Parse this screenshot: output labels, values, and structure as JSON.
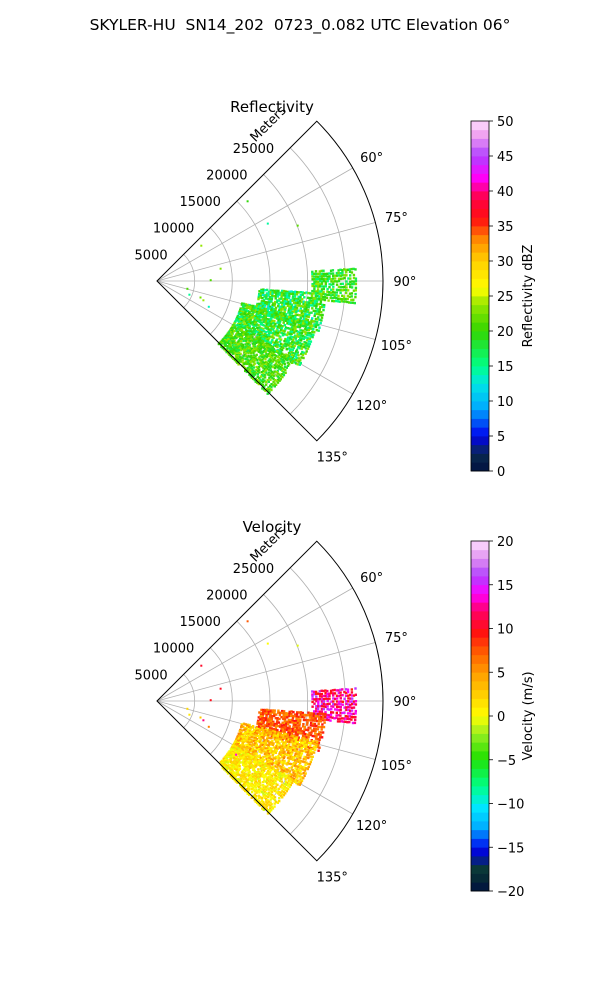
{
  "title": "SKYLER-HU  SN14_202  0723_0.082 UTC Elevation 06°",
  "chart_data": [
    {
      "type": "heatmap",
      "projection": "polar-sector",
      "title": "Reflectivity",
      "range_label": "Meters",
      "range_ticks": [
        5000,
        10000,
        15000,
        20000,
        25000
      ],
      "range_max": 30000,
      "azimuth_ticks": [
        "60°",
        "75°",
        "90°",
        "105°",
        "120°",
        "135°"
      ],
      "azimuth_range": [
        45,
        135
      ],
      "colorbar": {
        "label": "Reflectivity dBZ",
        "min": 0,
        "max": 50,
        "ticks": [
          0,
          5,
          10,
          15,
          20,
          25,
          30,
          35,
          40,
          45,
          50
        ]
      },
      "echo_regions": [
        {
          "az": [
            86,
            96
          ],
          "range": [
            20500,
            26500
          ],
          "value_range": [
            15,
            24
          ]
        },
        {
          "az": [
            94,
            107
          ],
          "range": [
            13500,
            22500
          ],
          "value_range": [
            13,
            24
          ]
        },
        {
          "az": [
            104,
            121
          ],
          "range": [
            11500,
            22000
          ],
          "value_range": [
            14,
            24
          ]
        },
        {
          "az": [
            120,
            136
          ],
          "range": [
            11500,
            21000
          ],
          "value_range": [
            17,
            24
          ]
        }
      ]
    },
    {
      "type": "heatmap",
      "projection": "polar-sector",
      "title": "Velocity",
      "range_label": "Meters",
      "range_ticks": [
        5000,
        10000,
        15000,
        20000,
        25000
      ],
      "range_max": 30000,
      "azimuth_ticks": [
        "60°",
        "75°",
        "90°",
        "105°",
        "120°",
        "135°"
      ],
      "azimuth_range": [
        45,
        135
      ],
      "colorbar": {
        "label": "Velocity (m/s)",
        "min": -20,
        "max": 20,
        "ticks": [
          -20,
          -15,
          -10,
          -5,
          0,
          5,
          10,
          15,
          20
        ]
      },
      "echo_regions": [
        {
          "az": [
            86,
            96
          ],
          "range": [
            20500,
            26500
          ],
          "value_range": [
            9,
            16
          ]
        },
        {
          "az": [
            94,
            107
          ],
          "range": [
            13500,
            22500
          ],
          "value_range": [
            5,
            10
          ]
        },
        {
          "az": [
            104,
            121
          ],
          "range": [
            11500,
            22000
          ],
          "value_range": [
            0,
            6
          ]
        },
        {
          "az": [
            120,
            136
          ],
          "range": [
            11500,
            21000
          ],
          "value_range": [
            -1,
            3
          ]
        }
      ]
    }
  ]
}
